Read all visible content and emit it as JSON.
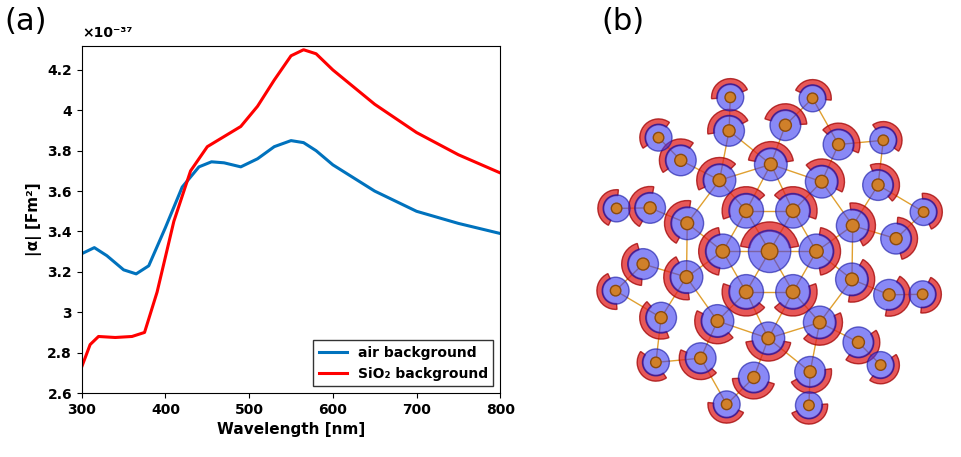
{
  "panel_labels": [
    "(a)",
    "(b)"
  ],
  "chart_data": {
    "type": "line",
    "x_label": "Wavelength [nm]",
    "y_label": "|α| [Fm²]",
    "annotations": [
      "×10⁻³⁷"
    ],
    "xlim": [
      300,
      800
    ],
    "xticks": [
      300,
      400,
      500,
      600,
      700,
      800
    ],
    "ylim": [
      2.6,
      4.32
    ],
    "yticks": [
      2.6,
      2.8,
      3,
      3.2,
      3.4,
      3.6,
      3.8,
      4,
      4.2
    ],
    "legend": "lower right",
    "series": [
      {
        "name": "air background",
        "color": "#0072bd",
        "x": [
          300,
          315,
          330,
          350,
          365,
          380,
          400,
          420,
          440,
          455,
          470,
          490,
          510,
          530,
          550,
          565,
          580,
          600,
          650,
          700,
          750,
          800
        ],
        "values": [
          3.29,
          3.32,
          3.28,
          3.21,
          3.19,
          3.23,
          3.42,
          3.62,
          3.72,
          3.745,
          3.74,
          3.72,
          3.76,
          3.82,
          3.85,
          3.84,
          3.8,
          3.73,
          3.6,
          3.5,
          3.44,
          3.39
        ]
      },
      {
        "name": "SiO₂ background",
        "color": "#ff0000",
        "x": [
          300,
          310,
          320,
          340,
          360,
          375,
          390,
          410,
          430,
          450,
          470,
          490,
          510,
          530,
          550,
          565,
          580,
          600,
          650,
          700,
          750,
          800
        ],
        "values": [
          2.73,
          2.84,
          2.88,
          2.875,
          2.88,
          2.9,
          3.1,
          3.45,
          3.7,
          3.82,
          3.87,
          3.92,
          4.02,
          4.15,
          4.27,
          4.3,
          4.28,
          4.2,
          4.03,
          3.89,
          3.78,
          3.69
        ]
      }
    ]
  }
}
